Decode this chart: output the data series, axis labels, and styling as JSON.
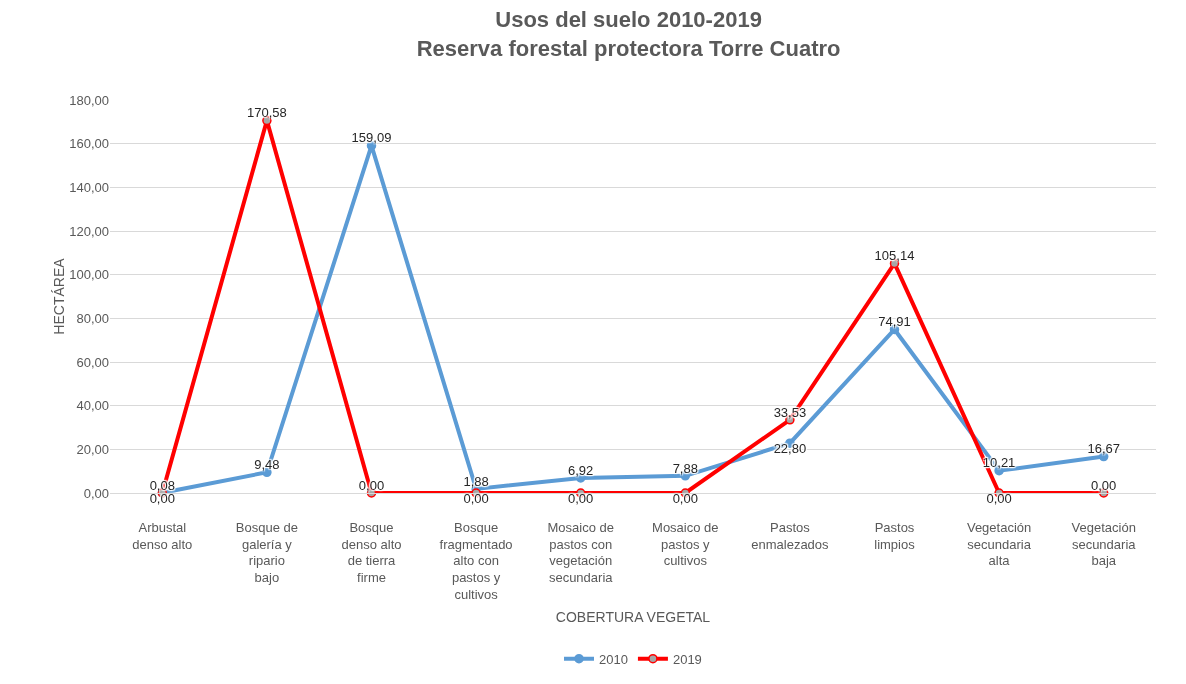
{
  "chart_data": {
    "type": "line",
    "title": "Usos del suelo 2010-2019\nReserva forestal protectora Torre Cuatro",
    "xlabel": "COBERTURA VEGETAL",
    "ylabel": "HECTÁREA",
    "categories": [
      "Arbustal denso alto",
      "Bosque de galería y ripario bajo",
      "Bosque denso alto de tierra firme",
      "Bosque fragmentado alto con pastos y cultivos",
      "Mosaico de pastos con vegetación secundaria",
      "Mosaico de pastos y cultivos",
      "Pastos enmalezados",
      "Pastos limpios",
      "Vegetación secundaria alta",
      "Vegetación secundaria baja"
    ],
    "series": [
      {
        "name": "2010",
        "color": "#5b9bd5",
        "values": [
          0.08,
          9.48,
          159.09,
          1.88,
          6.92,
          7.88,
          22.8,
          74.91,
          10.21,
          16.67
        ],
        "value_labels": [
          "0,08",
          "9,48",
          "159,09",
          "1,88",
          "6,92",
          "7,88",
          "22,80",
          "74,91",
          "10,21",
          "16,67"
        ]
      },
      {
        "name": "2019",
        "color": "#ff0000",
        "values": [
          0,
          170.58,
          0,
          0,
          0,
          0,
          33.53,
          105.14,
          0,
          0
        ],
        "value_labels": [
          "0,00",
          "170,58",
          "0,00",
          "0,00",
          "0,00",
          "0,00",
          "33,53",
          "105,14",
          "0,00",
          "0,00"
        ]
      }
    ],
    "ylim": [
      0,
      180
    ],
    "yticks": [
      {
        "value": 0,
        "label": "0,00"
      },
      {
        "value": 20,
        "label": "20,00"
      },
      {
        "value": 40,
        "label": "40,00"
      },
      {
        "value": 60,
        "label": "60,00"
      },
      {
        "value": 80,
        "label": "80,00"
      },
      {
        "value": 100,
        "label": "100,00"
      },
      {
        "value": 120,
        "label": "120,00"
      },
      {
        "value": 140,
        "label": "140,00"
      },
      {
        "value": 160,
        "label": "160,00"
      },
      {
        "value": 180,
        "label": "180,00"
      }
    ],
    "grid": "y",
    "legend": "bottom",
    "marker": "circle",
    "line_style": "solid"
  }
}
